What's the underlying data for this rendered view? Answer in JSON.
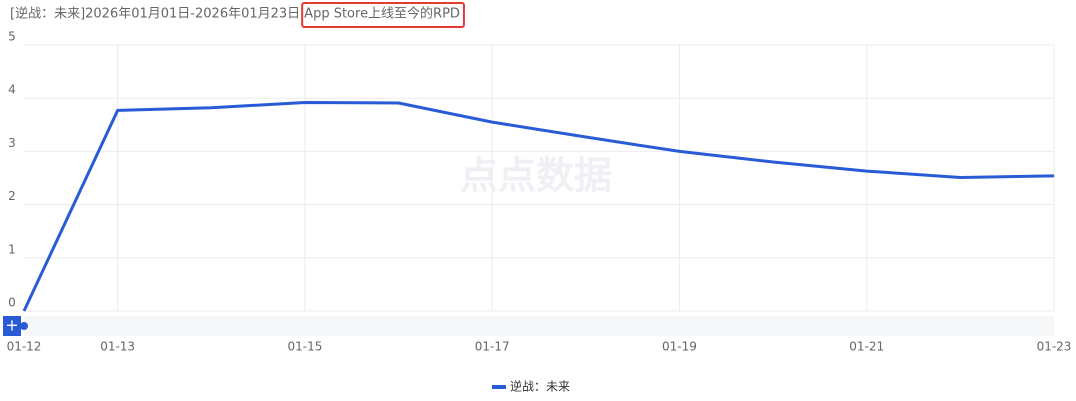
{
  "chart_data": {
    "type": "line",
    "title": "[逆战：未来]2026年01月01日-2026年01月23日",
    "highlighted_title": "App Store上线至今的RPD",
    "watermark": "点点数据",
    "categories": [
      "01-12",
      "01-13",
      null,
      "01-15",
      null,
      "01-17",
      null,
      "01-19",
      null,
      "01-21",
      null,
      "01-23"
    ],
    "series": [
      {
        "name": "逆战：未来",
        "color": "#2a5bd7",
        "values": [
          0,
          3.77,
          3.82,
          3.92,
          3.91,
          3.55,
          3.27,
          3.0,
          2.8,
          2.63,
          2.51,
          2.54
        ]
      }
    ],
    "ylim": [
      0,
      5
    ],
    "yticks": [
      0,
      1,
      2,
      3,
      4,
      5
    ],
    "grid": true,
    "legend": "bottom"
  }
}
